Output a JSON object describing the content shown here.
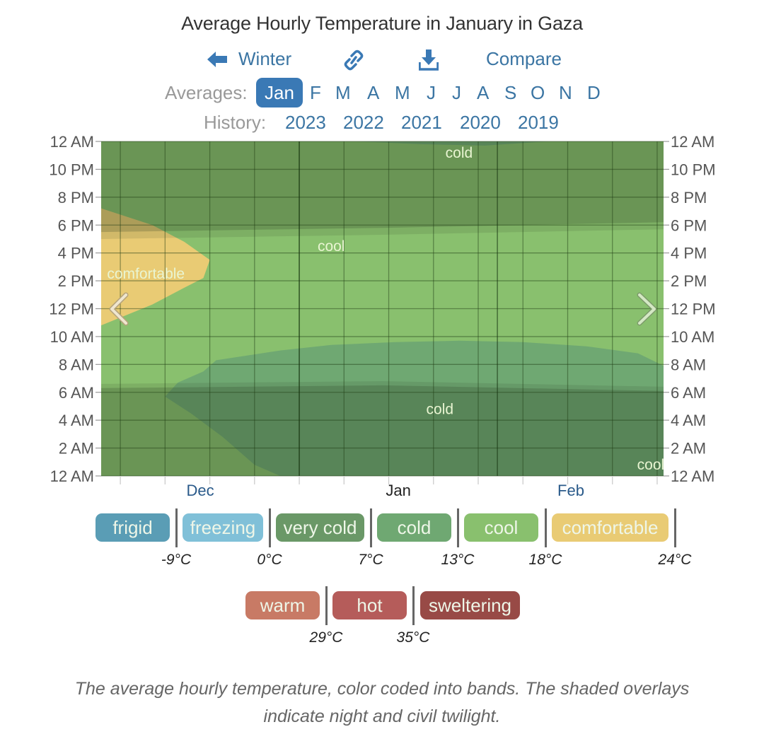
{
  "header": {
    "title": "Average Hourly Temperature in January in Gaza",
    "nav": {
      "back_label": "Winter",
      "back_icon": "arrow-left-icon",
      "link_icon": "link-icon",
      "download_icon": "download-icon",
      "compare_label": "Compare"
    },
    "averages_label": "Averages:",
    "months": [
      {
        "label": "Jan",
        "active": true
      },
      {
        "label": "F",
        "active": false
      },
      {
        "label": "M",
        "active": false
      },
      {
        "label": "A",
        "active": false
      },
      {
        "label": "M",
        "active": false
      },
      {
        "label": "J",
        "active": false
      },
      {
        "label": "J",
        "active": false
      },
      {
        "label": "A",
        "active": false
      },
      {
        "label": "S",
        "active": false
      },
      {
        "label": "O",
        "active": false
      },
      {
        "label": "N",
        "active": false
      },
      {
        "label": "D",
        "active": false
      }
    ],
    "history_label": "History:",
    "years": [
      "2023",
      "2022",
      "2021",
      "2020",
      "2019"
    ]
  },
  "chart_data": {
    "type": "heatmap",
    "title": "Average Hourly Temperature in January in Gaza",
    "x_axis": {
      "unit": "date",
      "range_days": [
        0,
        88
      ],
      "month_labels": [
        {
          "label": "Dec",
          "center_day": 15.5,
          "highlight": false
        },
        {
          "label": "Jan",
          "center_day": 46.5,
          "highlight": true
        },
        {
          "label": "Feb",
          "center_day": 73.5,
          "highlight": false
        }
      ],
      "month_boundaries_day": [
        31,
        62
      ],
      "tick_every_days": 7
    },
    "y_axis": {
      "unit": "hour",
      "range": [
        0,
        24
      ],
      "tick_labels": [
        "12 AM",
        "2 AM",
        "4 AM",
        "6 AM",
        "8 AM",
        "10 AM",
        "12 PM",
        "2 PM",
        "4 PM",
        "6 PM",
        "8 PM",
        "10 PM",
        "12 AM"
      ],
      "grid": true
    },
    "regions": [
      {
        "band": "cool",
        "description": "background band covering most daytime and evening hours"
      },
      {
        "band": "comfortable",
        "description": "early-December afternoons ~10:45 AM to ~7 PM, shrinking to none by mid-December",
        "boundary": [
          [
            0,
            10.8
          ],
          [
            8,
            12.3
          ],
          [
            13,
            13.5
          ],
          [
            16,
            14.2
          ],
          [
            17,
            15.5
          ],
          [
            13,
            16.8
          ],
          [
            8,
            18.0
          ],
          [
            0,
            19.2
          ]
        ]
      },
      {
        "band": "cold",
        "description": "early morning block mid-Dec through Feb",
        "boundary": [
          [
            10,
            5.7
          ],
          [
            14,
            4.5
          ],
          [
            19,
            2.8
          ],
          [
            24,
            0.8
          ],
          [
            28,
            0
          ],
          [
            88,
            0
          ],
          [
            88,
            2.6
          ],
          [
            84,
            1.2
          ],
          [
            79,
            0.6
          ],
          [
            88,
            1.4
          ],
          [
            88,
            7.9
          ],
          [
            84,
            8.8
          ],
          [
            76,
            9.3
          ],
          [
            66,
            9.6
          ],
          [
            56,
            9.7
          ],
          [
            46,
            9.6
          ],
          [
            36,
            9.4
          ],
          [
            28,
            9.0
          ],
          [
            18,
            8.3
          ],
          [
            16,
            7.5
          ],
          [
            12,
            6.7
          ]
        ]
      },
      {
        "band": "cold",
        "description": "small late-night region at top, late Dec to mid Jan",
        "boundary": [
          [
            40,
            24
          ],
          [
            70,
            24
          ],
          [
            60,
            23.7
          ],
          [
            50,
            23.8
          ]
        ]
      }
    ],
    "band_labels": [
      {
        "text": "cold",
        "day": 56,
        "hour": 23.2
      },
      {
        "text": "cool",
        "day": 36,
        "hour": 16.5
      },
      {
        "text": "comfortable",
        "day": 7,
        "hour": 14.5
      },
      {
        "text": "cold",
        "day": 53,
        "hour": 4.8
      },
      {
        "text": "cool",
        "day": 86,
        "hour": 0.8
      }
    ],
    "overlays": {
      "night_morning_end_hour": [
        6.3,
        6.5,
        6.1
      ],
      "twilight_morning_end_hour": [
        6.6,
        6.8,
        6.4
      ],
      "night_evening_start_hour": [
        17.5,
        17.8,
        18.2
      ],
      "twilight_evening_start_hour": [
        17.0,
        17.3,
        17.7
      ]
    }
  },
  "legend": {
    "bands": [
      {
        "label": "frigid",
        "color": "#5a9db5"
      },
      {
        "label": "freezing",
        "color": "#80c0d8"
      },
      {
        "label": "very cold",
        "color": "#6a9867"
      },
      {
        "label": "cold",
        "color": "#6fa872"
      },
      {
        "label": "cool",
        "color": "#89c06e"
      },
      {
        "label": "comfortable",
        "color": "#e9cb74"
      },
      {
        "label": "warm",
        "color": "#c87a65"
      },
      {
        "label": "hot",
        "color": "#b55c5a"
      },
      {
        "label": "sweltering",
        "color": "#984a46"
      }
    ],
    "thresholds": [
      "-9°C",
      "0°C",
      "7°C",
      "13°C",
      "18°C",
      "24°C",
      "29°C",
      "35°C"
    ]
  },
  "nav_arrows": {
    "prev_icon": "chevron-left-icon",
    "next_icon": "chevron-right-icon"
  },
  "caption": "The average hourly temperature, color coded into bands. The shaded overlays indicate night and civil twilight."
}
